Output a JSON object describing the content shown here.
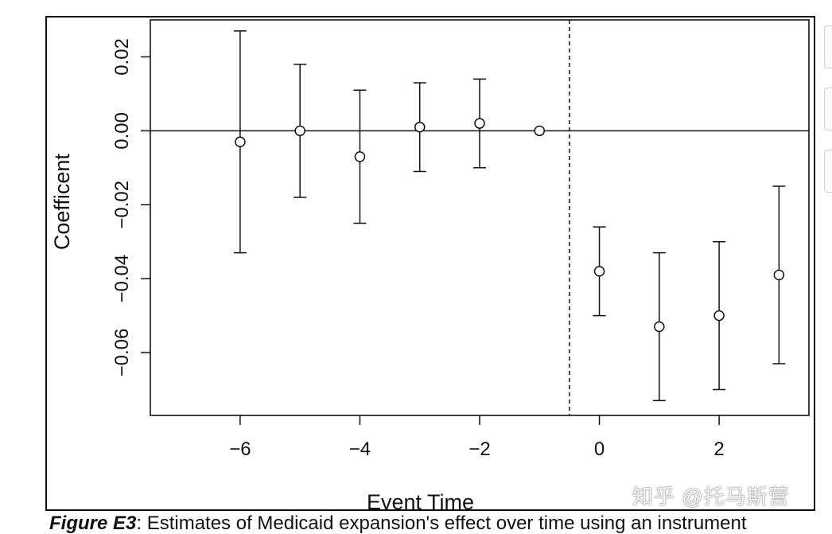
{
  "chart_data": {
    "type": "scatter",
    "title": "",
    "xlabel": "Event Time",
    "ylabel": "Coefficent",
    "x_ticks": [
      -6,
      -4,
      -2,
      0,
      2
    ],
    "y_ticks": [
      0.02,
      0.0,
      -0.02,
      -0.04,
      -0.06
    ],
    "y_tick_labels": [
      "0.02",
      "0.00",
      "−0.02",
      "−0.04",
      "−0.06"
    ],
    "x_tick_labels": [
      "−6",
      "−4",
      "−2",
      "0",
      "2"
    ],
    "xlim": [
      -7.5,
      3.5
    ],
    "ylim": [
      -0.077,
      0.03
    ],
    "zero_line": 0,
    "event_line_x": -0.5,
    "points": [
      {
        "x": -6,
        "y": -0.003,
        "low": -0.033,
        "high": 0.027
      },
      {
        "x": -5,
        "y": 0.0,
        "low": -0.018,
        "high": 0.018
      },
      {
        "x": -4,
        "y": -0.007,
        "low": -0.025,
        "high": 0.011
      },
      {
        "x": -3,
        "y": 0.001,
        "low": -0.011,
        "high": 0.013
      },
      {
        "x": -2,
        "y": 0.002,
        "low": -0.01,
        "high": 0.014
      },
      {
        "x": -1,
        "y": 0.0,
        "low": null,
        "high": null
      },
      {
        "x": 0,
        "y": -0.038,
        "low": -0.05,
        "high": -0.026
      },
      {
        "x": 1,
        "y": -0.053,
        "low": -0.073,
        "high": -0.033
      },
      {
        "x": 2,
        "y": -0.05,
        "low": -0.07,
        "high": -0.03
      },
      {
        "x": 3,
        "y": -0.039,
        "low": -0.063,
        "high": -0.015
      }
    ],
    "grid": false,
    "legend": "none"
  },
  "caption": {
    "figure_label": "Figure E3",
    "text": ": Estimates of Medicaid expansion's effect over time using an instrument"
  },
  "watermark": "知乎 @托马斯营"
}
